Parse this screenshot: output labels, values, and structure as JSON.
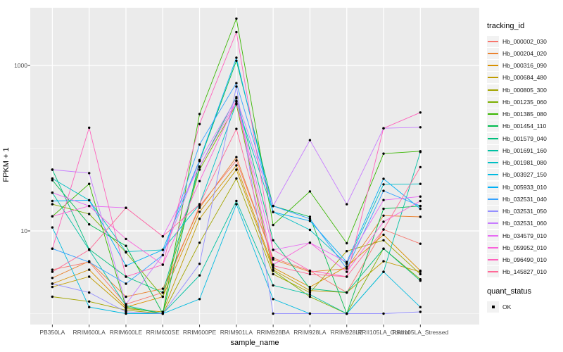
{
  "chart_data": {
    "type": "line",
    "title": "",
    "xlabel": "sample_name",
    "ylabel": "FPKM + 1",
    "y_scale": "log10",
    "ylim": [
      0.75,
      5000
    ],
    "y_ticks": [
      10,
      1000
    ],
    "y_tick_labels": [
      "10",
      "1000"
    ],
    "y_minor_ticks": [
      1,
      100
    ],
    "grid": true,
    "legend_position": "right",
    "legend_title": "tracking_id",
    "panel_bg": "#EBEBEB",
    "gridline_color": "#FFFFFF",
    "point_color": "#000000",
    "categories": [
      "PB350LA",
      "RRIM600LA",
      "RRIM600LE",
      "RRIM600SE",
      "RRIM600PE",
      "RRIM901LA",
      "RRIM928BA",
      "RRIM928LA",
      "RRIM928LE",
      "RRII105LA_Control",
      "RRII105LA_Stressed"
    ],
    "series": [
      {
        "name": "Hb_000002_030",
        "color": "#F8766D",
        "values": [
          3.4,
          4.2,
          1.3,
          1.8,
          20,
          71,
          4.7,
          3.3,
          1.8,
          10.4,
          7.0
        ]
      },
      {
        "name": "Hb_000204_020",
        "color": "#EA8331",
        "values": [
          2.7,
          4.3,
          1.6,
          2.0,
          19,
          78,
          4.5,
          3.2,
          3.5,
          15.3,
          14.8
        ]
      },
      {
        "name": "Hb_000316_090",
        "color": "#D89000",
        "values": [
          2.3,
          3.4,
          1.2,
          1.6,
          17,
          62,
          3.6,
          2.1,
          3.7,
          9.0,
          3.3
        ]
      },
      {
        "name": "Hb_000684_480",
        "color": "#C09B00",
        "values": [
          2.1,
          2.8,
          1.15,
          1.05,
          14,
          55,
          3.4,
          1.9,
          1.8,
          4.3,
          3.2
        ]
      },
      {
        "name": "Hb_000805_300",
        "color": "#A3A500",
        "values": [
          1.6,
          1.4,
          1.1,
          1.0,
          7.2,
          43,
          3.0,
          1.8,
          5.7,
          7.7,
          3.0
        ]
      },
      {
        "name": "Hb_001235_060",
        "color": "#7CAE00",
        "values": [
          21,
          16,
          5.5,
          1.6,
          55,
          340,
          3.3,
          1.6,
          1.0,
          6.1,
          2.6
        ]
      },
      {
        "name": "Hb_001385_080",
        "color": "#39B600",
        "values": [
          15,
          37,
          1.2,
          1.0,
          259,
          3690,
          11.8,
          30,
          7.1,
          86,
          92
        ]
      },
      {
        "name": "Hb_001454_110",
        "color": "#00BB4E",
        "values": [
          41,
          12,
          6.6,
          1.0,
          70,
          1140,
          20,
          14.8,
          1.0,
          18.5,
          20
        ]
      },
      {
        "name": "Hb_001579_040",
        "color": "#00BF7D",
        "values": [
          55,
          6.0,
          2.8,
          1.8,
          59,
          414,
          7.7,
          2.0,
          1.8,
          6.1,
          2.5
        ]
      },
      {
        "name": "Hb_001691_160",
        "color": "#00C1A3",
        "values": [
          29,
          5.9,
          1.25,
          1.0,
          2.9,
          23,
          2.2,
          1.7,
          1.0,
          3.2,
          90
        ]
      },
      {
        "name": "Hb_001981_080",
        "color": "#00BFC4",
        "values": [
          43,
          23.5,
          5.6,
          5.9,
          21,
          350,
          17,
          10.3,
          4.0,
          36.5,
          37
        ]
      },
      {
        "name": "Hb_003927_150",
        "color": "#00BAE0",
        "values": [
          11,
          1.2,
          1.0,
          1.0,
          1.5,
          21,
          1.5,
          1.0,
          1.0,
          3.2,
          1.2
        ]
      },
      {
        "name": "Hb_005933_010",
        "color": "#00B0F6",
        "values": [
          23,
          23.5,
          3.8,
          5.9,
          72,
          1240,
          16.9,
          13.2,
          4.2,
          42.6,
          18.5
        ]
      },
      {
        "name": "Hb_032531_040",
        "color": "#35A2FF",
        "values": [
          6.1,
          4.2,
          2.3,
          5.1,
          111,
          612,
          20,
          14.0,
          3.5,
          30.5,
          20
        ]
      },
      {
        "name": "Hb_032531_050",
        "color": "#9590FF",
        "values": [
          2.3,
          1.8,
          1.05,
          1.0,
          4.0,
          556,
          1.0,
          1.0,
          1.0,
          1.0,
          1.05
        ]
      },
      {
        "name": "Hb_032531_060",
        "color": "#C77CFF",
        "values": [
          55,
          50,
          1.3,
          5.1,
          70,
          400,
          20,
          125,
          21,
          174,
          179
        ]
      },
      {
        "name": "Hb_034579_010",
        "color": "#E76BF3",
        "values": [
          29,
          20,
          19,
          8.6,
          60,
          370,
          5.9,
          7.2,
          4.2,
          23.6,
          26
        ]
      },
      {
        "name": "Hb_059952_010",
        "color": "#FA62DB",
        "values": [
          15,
          20,
          8.0,
          3.9,
          40,
          370,
          3.9,
          7.2,
          3.2,
          12.9,
          23
        ]
      },
      {
        "name": "Hb_096490_010",
        "color": "#FF62BC",
        "values": [
          6.1,
          177,
          2.8,
          3.9,
          196,
          2530,
          5.9,
          3.3,
          2.8,
          174,
          270
        ]
      },
      {
        "name": "Hb_145827_010",
        "color": "#FF6A98",
        "values": [
          3.2,
          5.9,
          19,
          8.6,
          21,
          171,
          3.8,
          3.0,
          2.8,
          10.4,
          59
        ]
      }
    ],
    "quant_status": {
      "title": "quant_status",
      "items": [
        "OK"
      ]
    }
  }
}
